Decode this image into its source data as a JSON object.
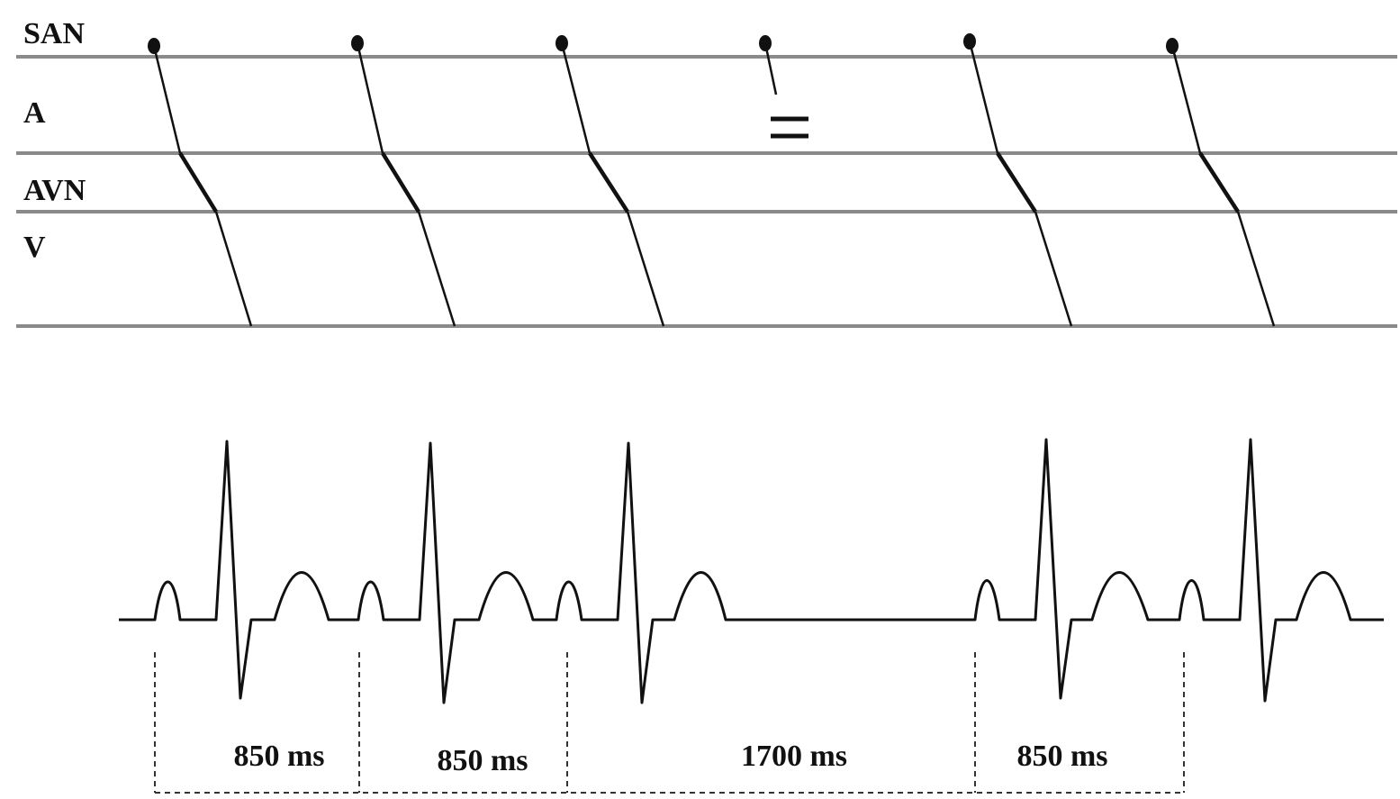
{
  "ladder": {
    "rows": [
      {
        "key": "san",
        "label": "SAN"
      },
      {
        "key": "a",
        "label": "A"
      },
      {
        "key": "avn",
        "label": "AVN"
      },
      {
        "key": "v",
        "label": "V"
      }
    ],
    "beats": [
      {
        "conducted": true
      },
      {
        "conducted": true
      },
      {
        "conducted": true
      },
      {
        "conducted": false,
        "blocked_in": "A"
      },
      {
        "conducted": true
      },
      {
        "conducted": true
      }
    ]
  },
  "intervals": [
    {
      "label": "850 ms"
    },
    {
      "label": "850 ms"
    },
    {
      "label": "1700 ms"
    },
    {
      "label": "850 ms"
    }
  ],
  "colors": {
    "line": "#8a8a8a",
    "ink": "#111111"
  }
}
